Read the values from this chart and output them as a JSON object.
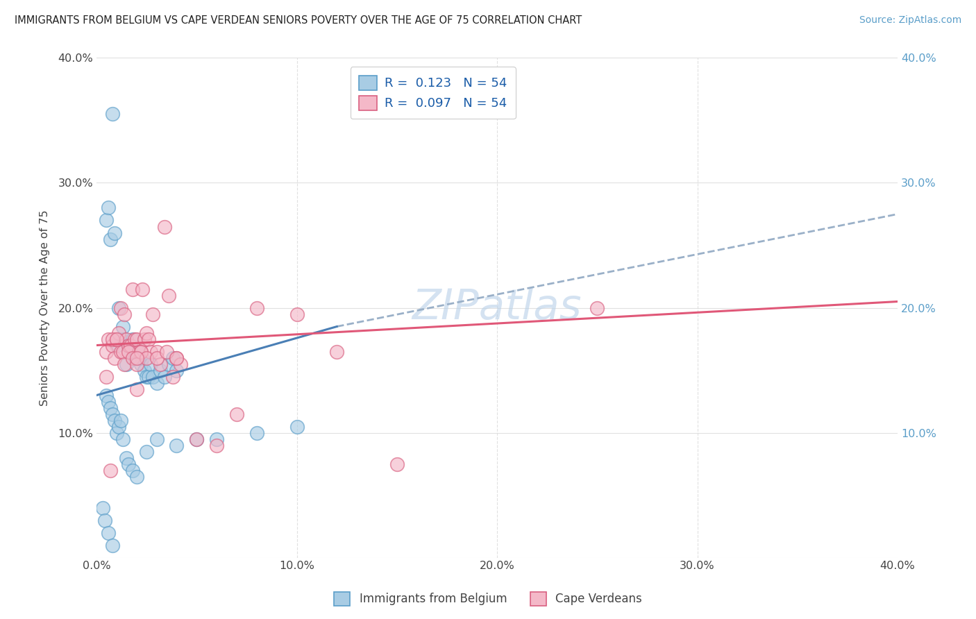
{
  "title": "IMMIGRANTS FROM BELGIUM VS CAPE VERDEAN SENIORS POVERTY OVER THE AGE OF 75 CORRELATION CHART",
  "source": "Source: ZipAtlas.com",
  "ylabel": "Seniors Poverty Over the Age of 75",
  "xlim": [
    0.0,
    0.4
  ],
  "ylim": [
    0.0,
    0.4
  ],
  "xtick_vals": [
    0.0,
    0.1,
    0.2,
    0.3,
    0.4
  ],
  "ytick_vals": [
    0.0,
    0.1,
    0.2,
    0.3,
    0.4
  ],
  "legend_label1": "Immigrants from Belgium",
  "legend_label2": "Cape Verdeans",
  "r1": "0.123",
  "n1": "54",
  "r2": "0.097",
  "n2": "54",
  "color_blue": "#a8cce4",
  "color_pink": "#f4b8c8",
  "edge_blue": "#5b9ec9",
  "edge_pink": "#d96080",
  "line_blue": "#4a7fb5",
  "line_pink": "#e05878",
  "line_gray": "#9ab0c8",
  "background_color": "#ffffff",
  "watermark": "ZIPatlas",
  "blue_scatter_x": [
    0.008,
    0.005,
    0.006,
    0.007,
    0.009,
    0.01,
    0.011,
    0.012,
    0.013,
    0.014,
    0.015,
    0.016,
    0.017,
    0.018,
    0.019,
    0.02,
    0.021,
    0.022,
    0.023,
    0.024,
    0.025,
    0.026,
    0.027,
    0.028,
    0.03,
    0.032,
    0.034,
    0.036,
    0.038,
    0.04,
    0.005,
    0.006,
    0.007,
    0.008,
    0.009,
    0.01,
    0.011,
    0.012,
    0.013,
    0.015,
    0.016,
    0.018,
    0.02,
    0.025,
    0.03,
    0.04,
    0.05,
    0.06,
    0.08,
    0.1,
    0.003,
    0.004,
    0.006,
    0.008
  ],
  "blue_scatter_y": [
    0.355,
    0.27,
    0.28,
    0.255,
    0.26,
    0.17,
    0.2,
    0.175,
    0.185,
    0.175,
    0.155,
    0.17,
    0.165,
    0.175,
    0.16,
    0.165,
    0.16,
    0.155,
    0.16,
    0.15,
    0.145,
    0.145,
    0.155,
    0.145,
    0.14,
    0.15,
    0.145,
    0.155,
    0.16,
    0.15,
    0.13,
    0.125,
    0.12,
    0.115,
    0.11,
    0.1,
    0.105,
    0.11,
    0.095,
    0.08,
    0.075,
    0.07,
    0.065,
    0.085,
    0.095,
    0.09,
    0.095,
    0.095,
    0.1,
    0.105,
    0.04,
    0.03,
    0.02,
    0.01
  ],
  "pink_scatter_x": [
    0.005,
    0.006,
    0.008,
    0.009,
    0.01,
    0.011,
    0.012,
    0.013,
    0.014,
    0.015,
    0.016,
    0.017,
    0.018,
    0.019,
    0.02,
    0.021,
    0.022,
    0.023,
    0.024,
    0.025,
    0.026,
    0.027,
    0.028,
    0.03,
    0.032,
    0.034,
    0.036,
    0.038,
    0.04,
    0.042,
    0.008,
    0.01,
    0.012,
    0.014,
    0.016,
    0.018,
    0.02,
    0.022,
    0.025,
    0.03,
    0.035,
    0.04,
    0.05,
    0.06,
    0.07,
    0.08,
    0.1,
    0.12,
    0.15,
    0.25,
    0.005,
    0.007,
    0.02,
    0.02
  ],
  "pink_scatter_y": [
    0.165,
    0.175,
    0.17,
    0.16,
    0.175,
    0.18,
    0.165,
    0.165,
    0.155,
    0.175,
    0.17,
    0.17,
    0.215,
    0.175,
    0.175,
    0.165,
    0.165,
    0.215,
    0.175,
    0.18,
    0.175,
    0.165,
    0.195,
    0.165,
    0.155,
    0.265,
    0.21,
    0.145,
    0.16,
    0.155,
    0.175,
    0.175,
    0.2,
    0.195,
    0.165,
    0.16,
    0.155,
    0.165,
    0.16,
    0.16,
    0.165,
    0.16,
    0.095,
    0.09,
    0.115,
    0.2,
    0.195,
    0.165,
    0.075,
    0.2,
    0.145,
    0.07,
    0.16,
    0.135
  ],
  "blue_line_x0": 0.0,
  "blue_line_x1": 0.12,
  "blue_line_y0": 0.13,
  "blue_line_y1": 0.185,
  "gray_line_x0": 0.12,
  "gray_line_x1": 0.4,
  "gray_line_y0": 0.185,
  "gray_line_y1": 0.275,
  "pink_line_x0": 0.0,
  "pink_line_x1": 0.4,
  "pink_line_y0": 0.17,
  "pink_line_y1": 0.205
}
